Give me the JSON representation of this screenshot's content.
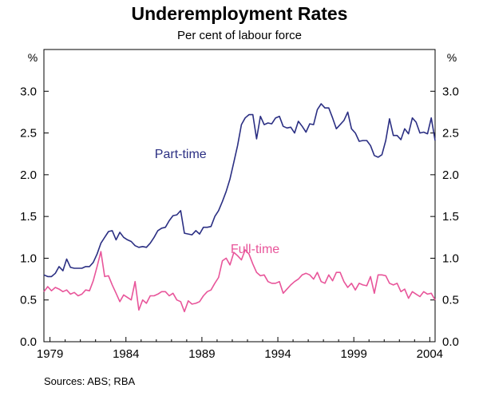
{
  "chart_data": {
    "type": "line",
    "title": "Underemployment Rates",
    "subtitle": "Per cent of labour force",
    "ylabel_left": "%",
    "ylabel_right": "%",
    "xlabel": "",
    "source": "Sources: ABS; RBA",
    "xlim": [
      1978.6,
      2004.35
    ],
    "ylim": [
      0,
      3.5
    ],
    "grid": false,
    "x_ticks": [
      1979,
      1984,
      1989,
      1994,
      1999,
      2004
    ],
    "y_ticks": [
      {
        "value": 0,
        "label": "0.0"
      },
      {
        "value": 0.5,
        "label": "0.5"
      },
      {
        "value": 1.0,
        "label": "1.0"
      },
      {
        "value": 1.5,
        "label": "1.5"
      },
      {
        "value": 2.0,
        "label": "2.0"
      },
      {
        "value": 2.5,
        "label": "2.5"
      },
      {
        "value": 3.0,
        "label": "3.0"
      }
    ],
    "series": [
      {
        "name": "Part-time",
        "color": "#2b2f83",
        "label_at": {
          "x": 1987.6,
          "y": 2.2
        },
        "points": [
          [
            1978.6,
            0.8
          ],
          [
            1978.85,
            0.78
          ],
          [
            1979.1,
            0.78
          ],
          [
            1979.35,
            0.82
          ],
          [
            1979.6,
            0.9
          ],
          [
            1979.85,
            0.85
          ],
          [
            1980.1,
            0.99
          ],
          [
            1980.35,
            0.89
          ],
          [
            1980.6,
            0.88
          ],
          [
            1980.85,
            0.88
          ],
          [
            1981.1,
            0.88
          ],
          [
            1981.35,
            0.9
          ],
          [
            1981.6,
            0.9
          ],
          [
            1981.85,
            0.95
          ],
          [
            1982.1,
            1.05
          ],
          [
            1982.35,
            1.18
          ],
          [
            1982.6,
            1.25
          ],
          [
            1982.85,
            1.32
          ],
          [
            1983.1,
            1.33
          ],
          [
            1983.35,
            1.22
          ],
          [
            1983.6,
            1.31
          ],
          [
            1983.85,
            1.25
          ],
          [
            1984.1,
            1.22
          ],
          [
            1984.35,
            1.2
          ],
          [
            1984.6,
            1.15
          ],
          [
            1984.85,
            1.13
          ],
          [
            1985.1,
            1.14
          ],
          [
            1985.35,
            1.13
          ],
          [
            1985.6,
            1.18
          ],
          [
            1985.85,
            1.25
          ],
          [
            1986.1,
            1.33
          ],
          [
            1986.35,
            1.36
          ],
          [
            1986.6,
            1.37
          ],
          [
            1986.85,
            1.45
          ],
          [
            1987.1,
            1.51
          ],
          [
            1987.35,
            1.52
          ],
          [
            1987.6,
            1.57
          ],
          [
            1987.85,
            1.3
          ],
          [
            1988.1,
            1.29
          ],
          [
            1988.35,
            1.28
          ],
          [
            1988.6,
            1.33
          ],
          [
            1988.85,
            1.29
          ],
          [
            1989.1,
            1.37
          ],
          [
            1989.35,
            1.37
          ],
          [
            1989.6,
            1.38
          ],
          [
            1989.85,
            1.5
          ],
          [
            1990.1,
            1.57
          ],
          [
            1990.35,
            1.68
          ],
          [
            1990.6,
            1.8
          ],
          [
            1990.85,
            1.95
          ],
          [
            1991.1,
            2.15
          ],
          [
            1991.35,
            2.35
          ],
          [
            1991.6,
            2.6
          ],
          [
            1991.85,
            2.68
          ],
          [
            1992.1,
            2.72
          ],
          [
            1992.35,
            2.72
          ],
          [
            1992.6,
            2.43
          ],
          [
            1992.85,
            2.7
          ],
          [
            1993.1,
            2.6
          ],
          [
            1993.35,
            2.62
          ],
          [
            1993.6,
            2.61
          ],
          [
            1993.85,
            2.68
          ],
          [
            1994.1,
            2.7
          ],
          [
            1994.35,
            2.58
          ],
          [
            1994.6,
            2.56
          ],
          [
            1994.85,
            2.57
          ],
          [
            1995.1,
            2.5
          ],
          [
            1995.35,
            2.64
          ],
          [
            1995.6,
            2.58
          ],
          [
            1995.85,
            2.51
          ],
          [
            1996.1,
            2.61
          ],
          [
            1996.35,
            2.6
          ],
          [
            1996.6,
            2.78
          ],
          [
            1996.85,
            2.85
          ],
          [
            1997.1,
            2.8
          ],
          [
            1997.35,
            2.8
          ],
          [
            1997.6,
            2.68
          ],
          [
            1997.85,
            2.55
          ],
          [
            1998.1,
            2.6
          ],
          [
            1998.35,
            2.65
          ],
          [
            1998.6,
            2.75
          ],
          [
            1998.85,
            2.55
          ],
          [
            1999.1,
            2.5
          ],
          [
            1999.35,
            2.4
          ],
          [
            1999.6,
            2.41
          ],
          [
            1999.85,
            2.41
          ],
          [
            2000.1,
            2.35
          ],
          [
            2000.35,
            2.23
          ],
          [
            2000.6,
            2.21
          ],
          [
            2000.85,
            2.24
          ],
          [
            2001.1,
            2.41
          ],
          [
            2001.35,
            2.67
          ],
          [
            2001.6,
            2.47
          ],
          [
            2001.85,
            2.47
          ],
          [
            2002.1,
            2.42
          ],
          [
            2002.35,
            2.55
          ],
          [
            2002.6,
            2.49
          ],
          [
            2002.85,
            2.68
          ],
          [
            2003.1,
            2.63
          ],
          [
            2003.35,
            2.5
          ],
          [
            2003.6,
            2.51
          ],
          [
            2003.85,
            2.49
          ],
          [
            2004.1,
            2.68
          ],
          [
            2004.35,
            2.41
          ]
        ]
      },
      {
        "name": "Full-time",
        "color": "#e8559a",
        "label_at": {
          "x": 1992.5,
          "y": 1.06
        },
        "points": [
          [
            1978.6,
            0.6
          ],
          [
            1978.85,
            0.66
          ],
          [
            1979.1,
            0.61
          ],
          [
            1979.35,
            0.65
          ],
          [
            1979.6,
            0.63
          ],
          [
            1979.85,
            0.6
          ],
          [
            1980.1,
            0.62
          ],
          [
            1980.35,
            0.57
          ],
          [
            1980.6,
            0.59
          ],
          [
            1980.85,
            0.55
          ],
          [
            1981.1,
            0.57
          ],
          [
            1981.35,
            0.62
          ],
          [
            1981.6,
            0.61
          ],
          [
            1981.85,
            0.73
          ],
          [
            1982.1,
            0.9
          ],
          [
            1982.35,
            1.08
          ],
          [
            1982.6,
            0.78
          ],
          [
            1982.85,
            0.79
          ],
          [
            1983.1,
            0.68
          ],
          [
            1983.35,
            0.58
          ],
          [
            1983.6,
            0.48
          ],
          [
            1983.85,
            0.56
          ],
          [
            1984.1,
            0.53
          ],
          [
            1984.35,
            0.5
          ],
          [
            1984.6,
            0.72
          ],
          [
            1984.85,
            0.38
          ],
          [
            1985.1,
            0.5
          ],
          [
            1985.35,
            0.46
          ],
          [
            1985.6,
            0.55
          ],
          [
            1985.85,
            0.55
          ],
          [
            1986.1,
            0.57
          ],
          [
            1986.35,
            0.6
          ],
          [
            1986.6,
            0.6
          ],
          [
            1986.85,
            0.55
          ],
          [
            1987.1,
            0.58
          ],
          [
            1987.35,
            0.5
          ],
          [
            1987.6,
            0.48
          ],
          [
            1987.85,
            0.36
          ],
          [
            1988.1,
            0.49
          ],
          [
            1988.35,
            0.45
          ],
          [
            1988.6,
            0.46
          ],
          [
            1988.85,
            0.48
          ],
          [
            1989.1,
            0.55
          ],
          [
            1989.35,
            0.6
          ],
          [
            1989.6,
            0.62
          ],
          [
            1989.85,
            0.7
          ],
          [
            1990.1,
            0.77
          ],
          [
            1990.35,
            0.97
          ],
          [
            1990.6,
            1.0
          ],
          [
            1990.85,
            0.92
          ],
          [
            1991.1,
            1.07
          ],
          [
            1991.35,
            1.03
          ],
          [
            1991.6,
            0.98
          ],
          [
            1991.85,
            1.1
          ],
          [
            1992.1,
            1.05
          ],
          [
            1992.35,
            0.93
          ],
          [
            1992.6,
            0.83
          ],
          [
            1992.85,
            0.79
          ],
          [
            1993.1,
            0.8
          ],
          [
            1993.35,
            0.72
          ],
          [
            1993.6,
            0.7
          ],
          [
            1993.85,
            0.7
          ],
          [
            1994.1,
            0.72
          ],
          [
            1994.35,
            0.58
          ],
          [
            1994.6,
            0.63
          ],
          [
            1994.85,
            0.68
          ],
          [
            1995.1,
            0.72
          ],
          [
            1995.35,
            0.75
          ],
          [
            1995.6,
            0.8
          ],
          [
            1995.85,
            0.82
          ],
          [
            1996.1,
            0.8
          ],
          [
            1996.35,
            0.75
          ],
          [
            1996.6,
            0.83
          ],
          [
            1996.85,
            0.72
          ],
          [
            1997.1,
            0.7
          ],
          [
            1997.35,
            0.8
          ],
          [
            1997.6,
            0.73
          ],
          [
            1997.85,
            0.83
          ],
          [
            1998.1,
            0.83
          ],
          [
            1998.35,
            0.72
          ],
          [
            1998.6,
            0.65
          ],
          [
            1998.85,
            0.7
          ],
          [
            1999.1,
            0.62
          ],
          [
            1999.35,
            0.7
          ],
          [
            1999.6,
            0.68
          ],
          [
            1999.85,
            0.67
          ],
          [
            2000.1,
            0.78
          ],
          [
            2000.35,
            0.58
          ],
          [
            2000.6,
            0.8
          ],
          [
            2000.85,
            0.8
          ],
          [
            2001.1,
            0.79
          ],
          [
            2001.35,
            0.7
          ],
          [
            2001.6,
            0.68
          ],
          [
            2001.85,
            0.7
          ],
          [
            2002.1,
            0.6
          ],
          [
            2002.35,
            0.63
          ],
          [
            2002.6,
            0.52
          ],
          [
            2002.85,
            0.6
          ],
          [
            2003.1,
            0.57
          ],
          [
            2003.35,
            0.54
          ],
          [
            2003.6,
            0.6
          ],
          [
            2003.85,
            0.57
          ],
          [
            2004.1,
            0.58
          ],
          [
            2004.35,
            0.5
          ]
        ]
      }
    ]
  }
}
